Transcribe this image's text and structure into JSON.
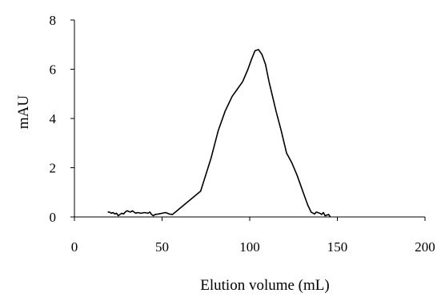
{
  "chart_data": {
    "type": "line",
    "title": "",
    "xlabel": "Elution volume (mL)",
    "ylabel": "mAU",
    "xlim": [
      0,
      200
    ],
    "ylim": [
      0,
      8
    ],
    "x_ticks": [
      0,
      50,
      100,
      150,
      200
    ],
    "y_ticks": [
      0,
      2,
      4,
      6,
      8
    ],
    "grid": false,
    "legend": "none",
    "series": [
      {
        "color": "#000000",
        "points": [
          [
            19,
            0.2
          ],
          [
            20,
            0.2
          ],
          [
            21,
            0.15
          ],
          [
            22,
            0.18
          ],
          [
            23,
            0.12
          ],
          [
            24,
            0.15
          ],
          [
            25,
            0.05
          ],
          [
            26,
            0.1
          ],
          [
            27,
            0.15
          ],
          [
            28,
            0.12
          ],
          [
            29,
            0.2
          ],
          [
            30,
            0.25
          ],
          [
            31,
            0.22
          ],
          [
            32,
            0.2
          ],
          [
            33,
            0.25
          ],
          [
            34,
            0.2
          ],
          [
            35,
            0.15
          ],
          [
            36,
            0.18
          ],
          [
            38,
            0.15
          ],
          [
            40,
            0.18
          ],
          [
            42,
            0.15
          ],
          [
            43,
            0.2
          ],
          [
            44,
            0.1
          ],
          [
            45,
            0.05
          ],
          [
            46,
            0.1
          ],
          [
            48,
            0.12
          ],
          [
            50,
            0.15
          ],
          [
            52,
            0.18
          ],
          [
            54,
            0.12
          ],
          [
            56,
            0.1
          ],
          [
            72,
            1.05
          ],
          [
            78,
            2.4
          ],
          [
            82,
            3.5
          ],
          [
            86,
            4.3
          ],
          [
            90,
            4.9
          ],
          [
            93,
            5.2
          ],
          [
            96,
            5.5
          ],
          [
            99,
            6.0
          ],
          [
            101,
            6.4
          ],
          [
            103,
            6.75
          ],
          [
            105,
            6.8
          ],
          [
            107,
            6.6
          ],
          [
            109,
            6.2
          ],
          [
            111,
            5.5
          ],
          [
            113,
            4.9
          ],
          [
            115,
            4.3
          ],
          [
            118,
            3.5
          ],
          [
            121,
            2.6
          ],
          [
            124,
            2.2
          ],
          [
            127,
            1.7
          ],
          [
            130,
            1.1
          ],
          [
            133,
            0.5
          ],
          [
            135,
            0.2
          ],
          [
            137,
            0.12
          ],
          [
            138,
            0.2
          ],
          [
            140,
            0.15
          ],
          [
            141,
            0.1
          ],
          [
            142,
            0.18
          ],
          [
            143,
            0.05
          ],
          [
            145,
            0.1
          ],
          [
            146,
            0.0
          ]
        ]
      }
    ]
  }
}
